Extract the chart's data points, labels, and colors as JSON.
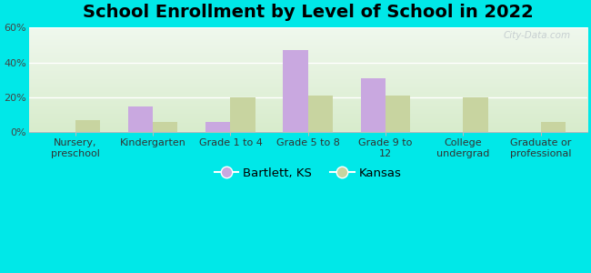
{
  "title": "School Enrollment by Level of School in 2022",
  "categories": [
    "Nursery,\npreschool",
    "Kindergarten",
    "Grade 1 to 4",
    "Grade 5 to 8",
    "Grade 9 to\n12",
    "College\nundergrad",
    "Graduate or\nprofessional"
  ],
  "bartlett_values": [
    0,
    15,
    6,
    47,
    31,
    0,
    0
  ],
  "kansas_values": [
    7,
    6,
    20,
    21,
    21,
    20,
    6
  ],
  "bartlett_color": "#c9a8e0",
  "kansas_color": "#c8d4a0",
  "background_color": "#00e8e8",
  "plot_bg_top": "#f0f8ee",
  "plot_bg_bottom": "#d8eccc",
  "ylim": [
    0,
    60
  ],
  "yticks": [
    0,
    20,
    40,
    60
  ],
  "ytick_labels": [
    "0%",
    "20%",
    "40%",
    "60%"
  ],
  "legend_bartlett": "Bartlett, KS",
  "legend_kansas": "Kansas",
  "watermark": "City-Data.com",
  "title_fontsize": 14,
  "tick_fontsize": 8,
  "legend_fontsize": 9.5,
  "bar_width": 0.32
}
